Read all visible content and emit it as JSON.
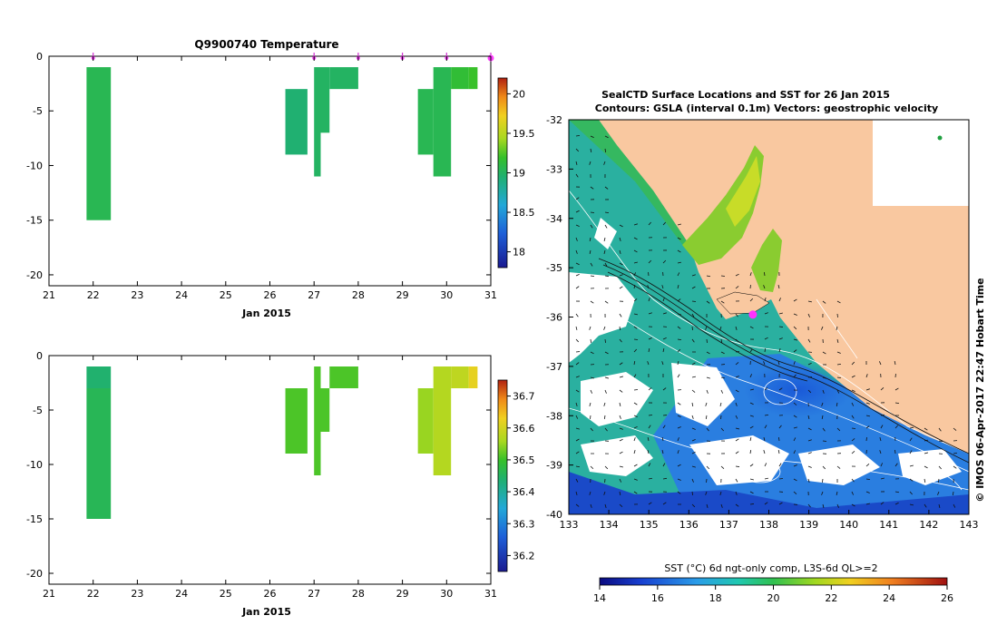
{
  "chart_data": [
    {
      "type": "heatmap",
      "title": "Q9900740  Temperature",
      "xlabel": "Jan 2015",
      "ylabel": "",
      "xlim": [
        21,
        31
      ],
      "ylim": [
        -21,
        0
      ],
      "x_ticks": [
        21,
        22,
        23,
        24,
        25,
        26,
        27,
        28,
        29,
        30,
        31
      ],
      "y_ticks": [
        0,
        -5,
        -10,
        -15,
        -20
      ],
      "colorbar": {
        "min": 17.8,
        "max": 20.2,
        "ticks": [
          18,
          18.5,
          19,
          19.5,
          20
        ]
      },
      "profile_times": [
        22,
        27,
        28,
        29,
        30,
        31
      ],
      "cells": [
        {
          "x0": 21.85,
          "x1": 22.4,
          "z_top": -1,
          "z_bot": -15,
          "value": 19.05
        },
        {
          "x0": 26.35,
          "x1": 26.85,
          "z_top": -3,
          "z_bot": -9,
          "value": 18.95
        },
        {
          "x0": 27.0,
          "x1": 27.15,
          "z_top": -1,
          "z_bot": -11,
          "value": 19.0
        },
        {
          "x0": 27.15,
          "x1": 27.35,
          "z_top": -1,
          "z_bot": -7,
          "value": 19.0
        },
        {
          "x0": 27.35,
          "x1": 28.0,
          "z_top": -1,
          "z_bot": -3,
          "value": 19.0
        },
        {
          "x0": 29.35,
          "x1": 29.7,
          "z_top": -3,
          "z_bot": -9,
          "value": 19.05
        },
        {
          "x0": 29.7,
          "x1": 30.1,
          "z_top": -1,
          "z_bot": -11,
          "value": 19.05
        },
        {
          "x0": 30.1,
          "x1": 30.5,
          "z_top": -1,
          "z_bot": -3,
          "value": 19.15
        },
        {
          "x0": 30.5,
          "x1": 30.7,
          "z_top": -1,
          "z_bot": -3,
          "value": 19.2
        }
      ]
    },
    {
      "type": "heatmap",
      "title": "",
      "xlabel": "Jan 2015",
      "ylabel": "",
      "xlim": [
        21,
        31
      ],
      "ylim": [
        -21,
        0
      ],
      "x_ticks": [
        21,
        22,
        23,
        24,
        25,
        26,
        27,
        28,
        29,
        30,
        31
      ],
      "y_ticks": [
        0,
        -5,
        -10,
        -15,
        -20
      ],
      "colorbar": {
        "min": 36.15,
        "max": 36.75,
        "ticks": [
          36.2,
          36.3,
          36.4,
          36.5,
          36.6,
          36.7
        ]
      },
      "cells": [
        {
          "x0": 21.85,
          "x1": 22.4,
          "z_top": -1,
          "z_bot": -3,
          "value": 36.44
        },
        {
          "x0": 21.85,
          "x1": 22.4,
          "z_top": -3,
          "z_bot": -15,
          "value": 36.46
        },
        {
          "x0": 26.35,
          "x1": 26.85,
          "z_top": -3,
          "z_bot": -9,
          "value": 36.51
        },
        {
          "x0": 27.0,
          "x1": 27.15,
          "z_top": -1,
          "z_bot": -11,
          "value": 36.51
        },
        {
          "x0": 27.15,
          "x1": 27.35,
          "z_top": -3,
          "z_bot": -7,
          "value": 36.51
        },
        {
          "x0": 27.35,
          "x1": 28.0,
          "z_top": -1,
          "z_bot": -3,
          "value": 36.51
        },
        {
          "x0": 29.35,
          "x1": 29.7,
          "z_top": -3,
          "z_bot": -9,
          "value": 36.55
        },
        {
          "x0": 29.7,
          "x1": 30.1,
          "z_top": -1,
          "z_bot": -11,
          "value": 36.57
        },
        {
          "x0": 30.1,
          "x1": 30.5,
          "z_top": -1,
          "z_bot": -3,
          "value": 36.58
        },
        {
          "x0": 30.5,
          "x1": 30.7,
          "z_top": -1,
          "z_bot": -3,
          "value": 36.62
        }
      ]
    },
    {
      "type": "heatmap",
      "title": "SealCTD Surface Locations and SST for 26 Jan 2015",
      "subtitle": "Contours: GSLA (interval 0.1m) Vectors: geostrophic velocity",
      "xlabel": "",
      "ylabel": "",
      "xlim": [
        133,
        143
      ],
      "ylim": [
        -40,
        -32
      ],
      "x_ticks": [
        133,
        134,
        135,
        136,
        137,
        138,
        139,
        140,
        141,
        142,
        143
      ],
      "y_ticks": [
        -32,
        -33,
        -34,
        -35,
        -36,
        -37,
        -38,
        -39,
        -40
      ],
      "colorbar": {
        "label": "SST (°C) 6d ngt-only comp, L3S-6d QL>=2",
        "min": 14,
        "max": 26,
        "ticks": [
          14,
          16,
          18,
          20,
          22,
          24,
          26
        ]
      },
      "seal_location": {
        "lon": 137.6,
        "lat": -35.95
      },
      "side_label": "© IMOS 06-Apr-2017 22:47 Hobart Time"
    }
  ]
}
